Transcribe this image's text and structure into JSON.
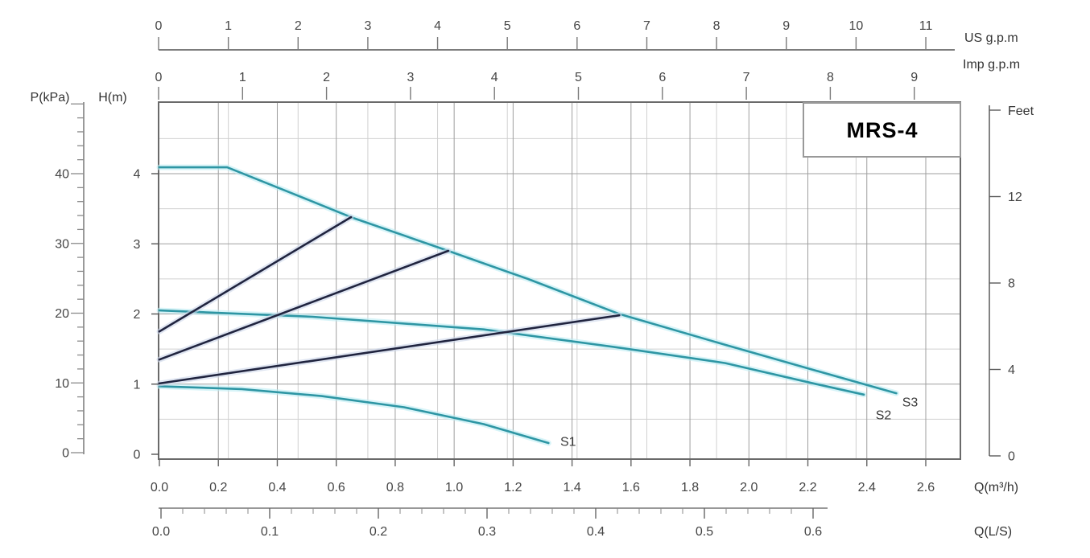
{
  "chart_data": {
    "type": "line",
    "title": "MRS-4",
    "axes": {
      "top_primary": {
        "label": "US g.p.m",
        "ticks": [
          0,
          1,
          2,
          3,
          4,
          5,
          6,
          7,
          8,
          9,
          10,
          11
        ]
      },
      "top_secondary": {
        "label": "Imp g.p.m",
        "ticks": [
          0,
          1,
          2,
          3,
          4,
          5,
          6,
          7,
          8,
          9
        ]
      },
      "left_pressure": {
        "label": "P(kPa)",
        "ticks": [
          0,
          10,
          20,
          30,
          40
        ],
        "minor_step": 2,
        "minor_max": 50
      },
      "left_head": {
        "label": "H(m)",
        "ticks": [
          0,
          1,
          2,
          3,
          4
        ]
      },
      "right_feet": {
        "label": "Feet",
        "ticks": [
          0,
          4,
          8,
          12
        ]
      },
      "bottom_flow_m3h": {
        "label": "Q(m³/h)",
        "ticks": [
          0,
          0.2,
          0.4,
          0.6,
          0.8,
          1.0,
          1.2,
          1.4,
          1.6,
          1.8,
          2.0,
          2.2,
          2.4,
          2.6
        ],
        "tick_labels": [
          "0.0",
          "0.2",
          "0.4",
          "0.6",
          "0.8",
          "1.0",
          "1.2",
          "1.4",
          "1.6",
          "1.8",
          "2.0",
          "2.2",
          "2.4",
          "2.6"
        ]
      },
      "bottom_flow_ls": {
        "label": "Q(L/S)",
        "ticks": [
          0,
          0.1,
          0.2,
          0.3,
          0.4,
          0.5,
          0.6
        ],
        "tick_labels": [
          "0.0",
          "0.1",
          "0.2",
          "0.3",
          "0.4",
          "0.5",
          "0.6"
        ],
        "minor_step": 0.02
      }
    },
    "grid": {
      "vertical_step_m3h": 0.2,
      "horizontal_step_m": 0.5
    },
    "series": [
      {
        "name": "pump-curve-s3",
        "label": "S3",
        "color": "#2e96a4",
        "kind": "pump-curve",
        "points": [
          [
            0,
            4.09
          ],
          [
            0.23,
            4.09
          ],
          [
            0.45,
            3.72
          ],
          [
            0.65,
            3.38
          ],
          [
            0.98,
            2.9
          ],
          [
            1.25,
            2.5
          ],
          [
            1.56,
            2.0
          ],
          [
            1.92,
            1.56
          ],
          [
            2.23,
            1.19
          ],
          [
            2.5,
            0.87
          ]
        ],
        "label_at": [
          2.52,
          0.68
        ]
      },
      {
        "name": "pump-curve-s2",
        "label": "S2",
        "color": "#2e96a4",
        "kind": "pump-curve",
        "points": [
          [
            0,
            2.05
          ],
          [
            0.52,
            1.96
          ],
          [
            1.1,
            1.78
          ],
          [
            1.56,
            1.52
          ],
          [
            1.92,
            1.3
          ],
          [
            2.23,
            1.0
          ],
          [
            2.39,
            0.85
          ]
        ],
        "label_at": [
          2.43,
          0.5
        ]
      },
      {
        "name": "pump-curve-s1",
        "label": "S1",
        "color": "#2e96a4",
        "kind": "pump-curve",
        "points": [
          [
            0,
            0.97
          ],
          [
            0.28,
            0.93
          ],
          [
            0.55,
            0.83
          ],
          [
            0.83,
            0.67
          ],
          [
            1.1,
            0.43
          ],
          [
            1.32,
            0.16
          ]
        ],
        "label_at": [
          1.36,
          0.12
        ]
      },
      {
        "name": "speed-line-1",
        "label": "",
        "color": "#20243f",
        "kind": "speed-line",
        "points": [
          [
            0,
            1.75
          ],
          [
            0.65,
            3.38
          ]
        ]
      },
      {
        "name": "speed-line-2",
        "label": "",
        "color": "#20243f",
        "kind": "speed-line",
        "points": [
          [
            0,
            1.35
          ],
          [
            0.98,
            2.9
          ]
        ]
      },
      {
        "name": "speed-line-3",
        "label": "",
        "color": "#20243f",
        "kind": "speed-line",
        "points": [
          [
            0,
            1.01
          ],
          [
            1.56,
            1.98
          ]
        ]
      }
    ],
    "colors": {
      "curve_teal": "#2e96a4",
      "curve_navy": "#20243f",
      "halo_teal": "#bdecf3",
      "halo_navy": "#ccd6ea",
      "grid_major": "#9f9f9f",
      "grid_minor": "#d0d0d0",
      "plot_border": "#6a6a6a",
      "tick_text": "#454545",
      "unit_text": "#333333",
      "title_text": "#000000"
    }
  }
}
